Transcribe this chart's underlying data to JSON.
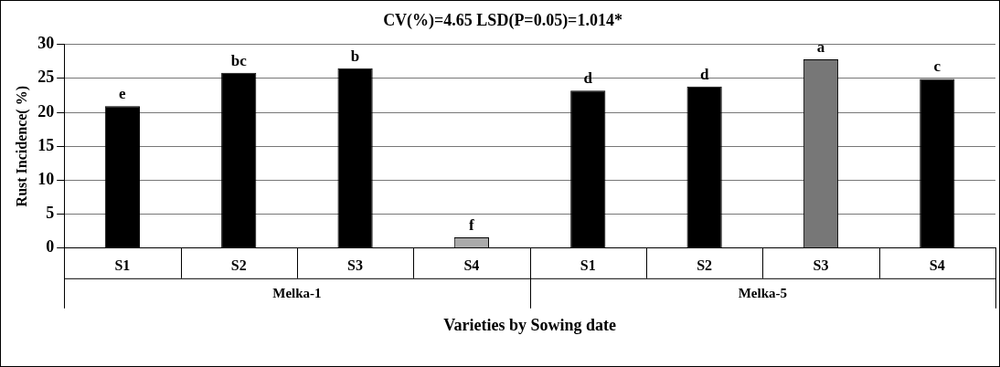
{
  "chart_data": {
    "type": "bar",
    "title": "CV(%)=4.65 LSD(P=0.05)=1.014*",
    "xlabel": "Varieties by Sowing date",
    "ylabel": "Rust Incidence( %)",
    "categories": [
      "S1",
      "S2",
      "S3",
      "S4",
      "S1",
      "S2",
      "S3",
      "S4"
    ],
    "values": [
      20.9,
      25.8,
      26.5,
      1.6,
      23.2,
      23.8,
      27.8,
      24.9
    ],
    "colors": [
      "#000000",
      "#000000",
      "#000000",
      "#aaaaaa",
      "#000000",
      "#000000",
      "#777777",
      "#000000"
    ],
    "value_labels": [
      "e",
      "bc",
      "b",
      "f",
      "d",
      "d",
      "a",
      "c"
    ],
    "annotations": [
      "Melka-1",
      "Melka-5"
    ],
    "ylim": [
      0,
      30
    ],
    "yticks": [
      0,
      5,
      10,
      15,
      20,
      25,
      30
    ],
    "grid": "y"
  }
}
